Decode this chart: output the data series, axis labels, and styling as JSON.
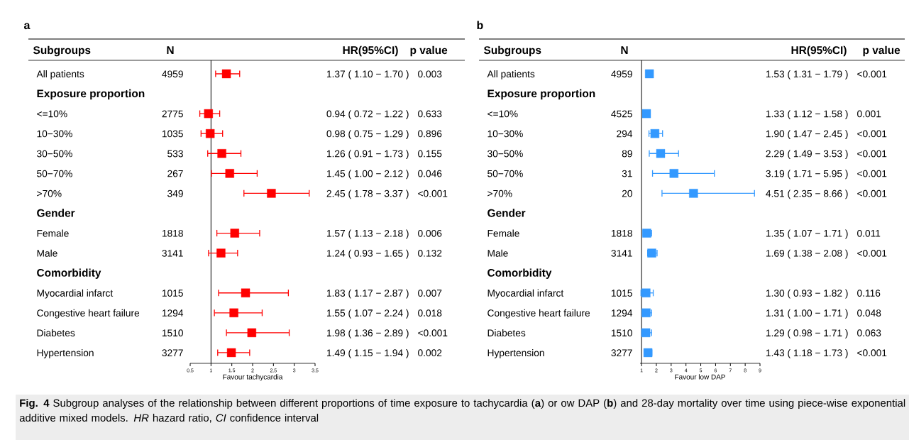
{
  "chart_data": [
    {
      "type": "scatter",
      "orientation": "horizontal",
      "title": "a",
      "xlabel": "Favour tachycardia",
      "marker": "square",
      "color": "#ff0000",
      "categories": [
        "All patients",
        "Exposure proportion",
        "<=10%",
        "10−30%",
        "30−50%",
        "50−70%",
        ">70%",
        "Gender",
        "Female",
        "Male",
        "Comorbidity",
        "Myocardial infarct",
        "Congestive heart failure",
        "Diabetes",
        "Hypertension"
      ],
      "values": [
        1.37,
        null,
        0.94,
        0.98,
        1.26,
        1.45,
        2.45,
        null,
        1.57,
        1.24,
        null,
        1.83,
        1.55,
        1.98,
        1.49
      ],
      "errors": [
        [
          1.1,
          1.7
        ],
        null,
        [
          0.72,
          1.22
        ],
        [
          0.75,
          1.29
        ],
        [
          0.91,
          1.73
        ],
        [
          1.0,
          2.12
        ],
        [
          1.78,
          3.37
        ],
        null,
        [
          1.13,
          2.18
        ],
        [
          0.93,
          1.65
        ],
        null,
        [
          1.17,
          2.87
        ],
        [
          1.07,
          2.24
        ],
        [
          1.36,
          2.89
        ],
        [
          1.15,
          1.94
        ]
      ],
      "value_labels": [
        "1.37 ( 1.10 − 1.70 )",
        null,
        "0.94 ( 0.72 − 1.22 )",
        "0.98 ( 0.75 − 1.29 )",
        "1.26 ( 0.91 − 1.73 )",
        "1.45 ( 1.00 − 2.12 )",
        "2.45 ( 1.78 − 3.37 )",
        null,
        "1.57 ( 1.13 − 2.18 )",
        "1.24 ( 0.93 − 1.65 )",
        null,
        "1.83 ( 1.17 − 2.87 )",
        "1.55 ( 1.07 − 2.24 )",
        "1.98 ( 1.36 − 2.89 )",
        "1.49 ( 1.15 − 1.94 )"
      ],
      "xlim": [
        0.5,
        3.5
      ],
      "xticks": [
        0.5,
        1,
        1.5,
        2,
        2.5,
        3,
        3.5
      ],
      "ref_lines": [
        {
          "axis": "x",
          "value": 1,
          "color": "#000000"
        }
      ],
      "annotations": [
        "Subgroups",
        "N",
        "HR(95%CI)",
        "p value",
        "4959",
        "0.003",
        "2775",
        "0.633",
        "1035",
        "0.896",
        "533",
        "0.155",
        "267",
        "0.046",
        "349",
        "<0.001",
        "1818",
        "0.006",
        "3141",
        "0.132",
        "1015",
        "0.007",
        "1294",
        "0.018",
        "1510",
        "<0.001",
        "3277",
        "0.002",
        "**Fig. 4** Subgroup analyses of the relationship between different proportions of time exposure to tachycardia (**a**) or ow DAP (**b**) and 28-day mortality over time using piece-wise exponential additive mixed models. *HR* hazard ratio, *CI* confidence interval"
      ]
    },
    {
      "type": "scatter",
      "orientation": "horizontal",
      "title": "b",
      "xlabel": "Favour low DAP",
      "marker": "square",
      "color": "#3399ff",
      "categories": [
        "All patients",
        "Exposure proportion",
        "<=10%",
        "10−30%",
        "30−50%",
        "50−70%",
        ">70%",
        "Gender",
        "Female",
        "Male",
        "Comorbidity",
        "Myocardial infarct",
        "Congestive heart failure",
        "Diabetes",
        "Hypertension"
      ],
      "values": [
        1.53,
        null,
        1.33,
        1.9,
        2.29,
        3.19,
        4.51,
        null,
        1.35,
        1.69,
        null,
        1.3,
        1.31,
        1.29,
        1.43
      ],
      "errors": [
        [
          1.31,
          1.79
        ],
        null,
        [
          1.12,
          1.58
        ],
        [
          1.47,
          2.45
        ],
        [
          1.49,
          3.53
        ],
        [
          1.71,
          5.95
        ],
        [
          2.35,
          8.66
        ],
        null,
        [
          1.07,
          1.71
        ],
        [
          1.38,
          2.08
        ],
        null,
        [
          0.93,
          1.82
        ],
        [
          1.0,
          1.71
        ],
        [
          0.98,
          1.71
        ],
        [
          1.18,
          1.73
        ]
      ],
      "value_labels": [
        "1.53 ( 1.31 − 1.79 )",
        null,
        "1.33 ( 1.12 − 1.58 )",
        "1.90 ( 1.47 − 2.45 )",
        "2.29 ( 1.49 − 3.53 )",
        "3.19 ( 1.71 − 5.95 )",
        "4.51 ( 2.35 − 8.66 )",
        null,
        "1.35 ( 1.07 − 1.71 )",
        "1.69 ( 1.38 − 2.08 )",
        null,
        "1.30 ( 0.93 − 1.82 )",
        "1.31 ( 1.00 − 1.71 )",
        "1.29 ( 0.98 − 1.71 )",
        "1.43 ( 1.18 − 1.73 )"
      ],
      "xlim": [
        0.9,
        9
      ],
      "xticks": [
        1,
        2,
        3,
        4,
        5,
        6,
        7,
        8,
        9
      ],
      "ref_lines": [
        {
          "axis": "x",
          "value": 1,
          "color": "#000000"
        }
      ],
      "annotations": [
        "Subgroups",
        "N",
        "HR(95%CI)",
        "p value",
        "4959",
        "<0.001",
        "4525",
        "0.001",
        "294",
        "<0.001",
        "89",
        "<0.001",
        "31",
        "<0.001",
        "20",
        "<0.001",
        "1818",
        "0.011",
        "3141",
        "<0.001",
        "1015",
        "0.116",
        "1294",
        "0.048",
        "1510",
        "0.063",
        "3277",
        "<0.001"
      ]
    }
  ]
}
